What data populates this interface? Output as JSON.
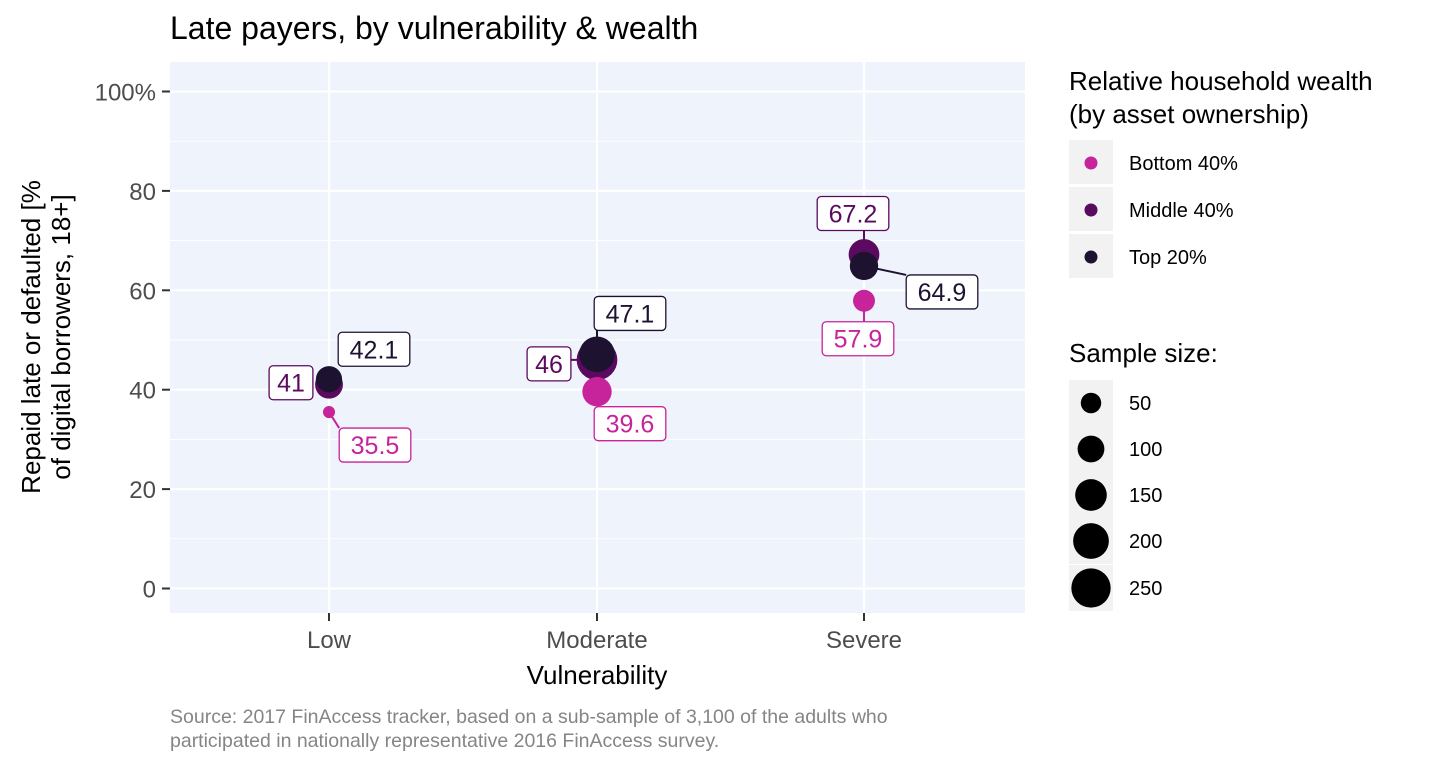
{
  "chart_data": {
    "type": "scatter",
    "title": "Late payers, by vulnerability & wealth",
    "xlabel": "Vulnerability",
    "ylabel": "Repaid late or defaulted [%\nof digital borrowers, 18+]",
    "categories": [
      "Low",
      "Moderate",
      "Severe"
    ],
    "ylim": [
      -5,
      105
    ],
    "yticks": [
      0,
      20,
      40,
      60,
      80,
      100
    ],
    "ytick_labels": [
      "0",
      "20",
      "40",
      "60",
      "80",
      "100%"
    ],
    "grid": true,
    "background": "#eff3fb",
    "legend_position": "right",
    "color_legend": {
      "title": "Relative household wealth\n(by asset ownership)",
      "entries": [
        {
          "label": "Bottom 40%",
          "color": "#c7239b"
        },
        {
          "label": "Middle 40%",
          "color": "#5a0a5f"
        },
        {
          "label": "Top 20%",
          "color": "#1e1231"
        }
      ]
    },
    "size_legend": {
      "title": "Sample size:",
      "values": [
        50,
        100,
        150,
        200,
        250
      ]
    },
    "series": [
      {
        "name": "Bottom 40%",
        "color": "#c7239b",
        "values": [
          35.5,
          39.6,
          57.9
        ],
        "labels": [
          "35.5",
          "39.6",
          "57.9"
        ],
        "sample_size": [
          10,
          125,
          60
        ]
      },
      {
        "name": "Middle 40%",
        "color": "#5a0a5f",
        "values": [
          41,
          46,
          67.2
        ],
        "labels": [
          "41",
          "46",
          "67.2"
        ],
        "sample_size": [
          110,
          270,
          140
        ]
      },
      {
        "name": "Top 20%",
        "color": "#1e1231",
        "values": [
          42.1,
          47.1,
          64.9
        ],
        "labels": [
          "42.1",
          "47.1",
          "64.9"
        ],
        "sample_size": [
          95,
          200,
          115
        ]
      }
    ],
    "caption": "Source: 2017 FinAccess tracker, based on a sub-sample of 3,100 of the adults who\nparticipated in nationally representative 2016 FinAccess survey."
  }
}
